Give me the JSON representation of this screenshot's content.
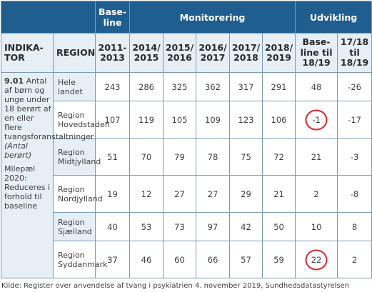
{
  "header": {
    "baseline_line1": "Base-",
    "baseline_line2": "line",
    "monitoring": "Monitorering",
    "development": "Udvikling"
  },
  "subheader": {
    "indikator_line1": "INDIKA-",
    "indikator_line2": "TOR",
    "region": "REGION",
    "years": [
      [
        "2011-",
        "2013"
      ],
      [
        "2014/",
        "2015"
      ],
      [
        "2015/",
        "2016"
      ],
      [
        "2016/",
        "2017"
      ],
      [
        "2017/",
        "2018"
      ],
      [
        "2018/",
        "2019"
      ]
    ],
    "dev1": [
      "Base-",
      "line til",
      "18/19"
    ],
    "dev2": [
      "17/18",
      "til",
      "18/19"
    ]
  },
  "indicator": {
    "code": "9.01",
    "text": "Antal af børn og unge under 18 berørt af en eller flere tvangsforanstaltninger",
    "note": "(Antal berørt)",
    "milestone": "Milepæl 2020: Reduceres i forhold til baseline"
  },
  "rows": [
    {
      "region": "Hele landet",
      "values": [
        "243",
        "286",
        "325",
        "362",
        "317",
        "291"
      ],
      "dev1": "48",
      "dev2": "-26"
    },
    {
      "region": "Region Hovedstaden",
      "values": [
        "107",
        "119",
        "105",
        "109",
        "123",
        "106"
      ],
      "dev1": "-1",
      "dev2": "-17"
    },
    {
      "region": "Region Midtjylland",
      "values": [
        "51",
        "70",
        "79",
        "78",
        "75",
        "72"
      ],
      "dev1": "21",
      "dev2": "-3"
    },
    {
      "region": "Region Nordjylland",
      "values": [
        "19",
        "12",
        "27",
        "27",
        "29",
        "21"
      ],
      "dev1": "2",
      "dev2": "-8"
    },
    {
      "region": "Region Sjælland",
      "values": [
        "40",
        "53",
        "73",
        "97",
        "42",
        "50"
      ],
      "dev1": "10",
      "dev2": "8"
    },
    {
      "region": "Region Syddanmark",
      "values": [
        "37",
        "46",
        "60",
        "66",
        "57",
        "59"
      ],
      "dev1": "22",
      "dev2": "2"
    }
  ],
  "source": "Kilde: Register over anvendelse af tvang i psykiatrien 4. november 2019, Sundhedsdatastyrelsen"
}
